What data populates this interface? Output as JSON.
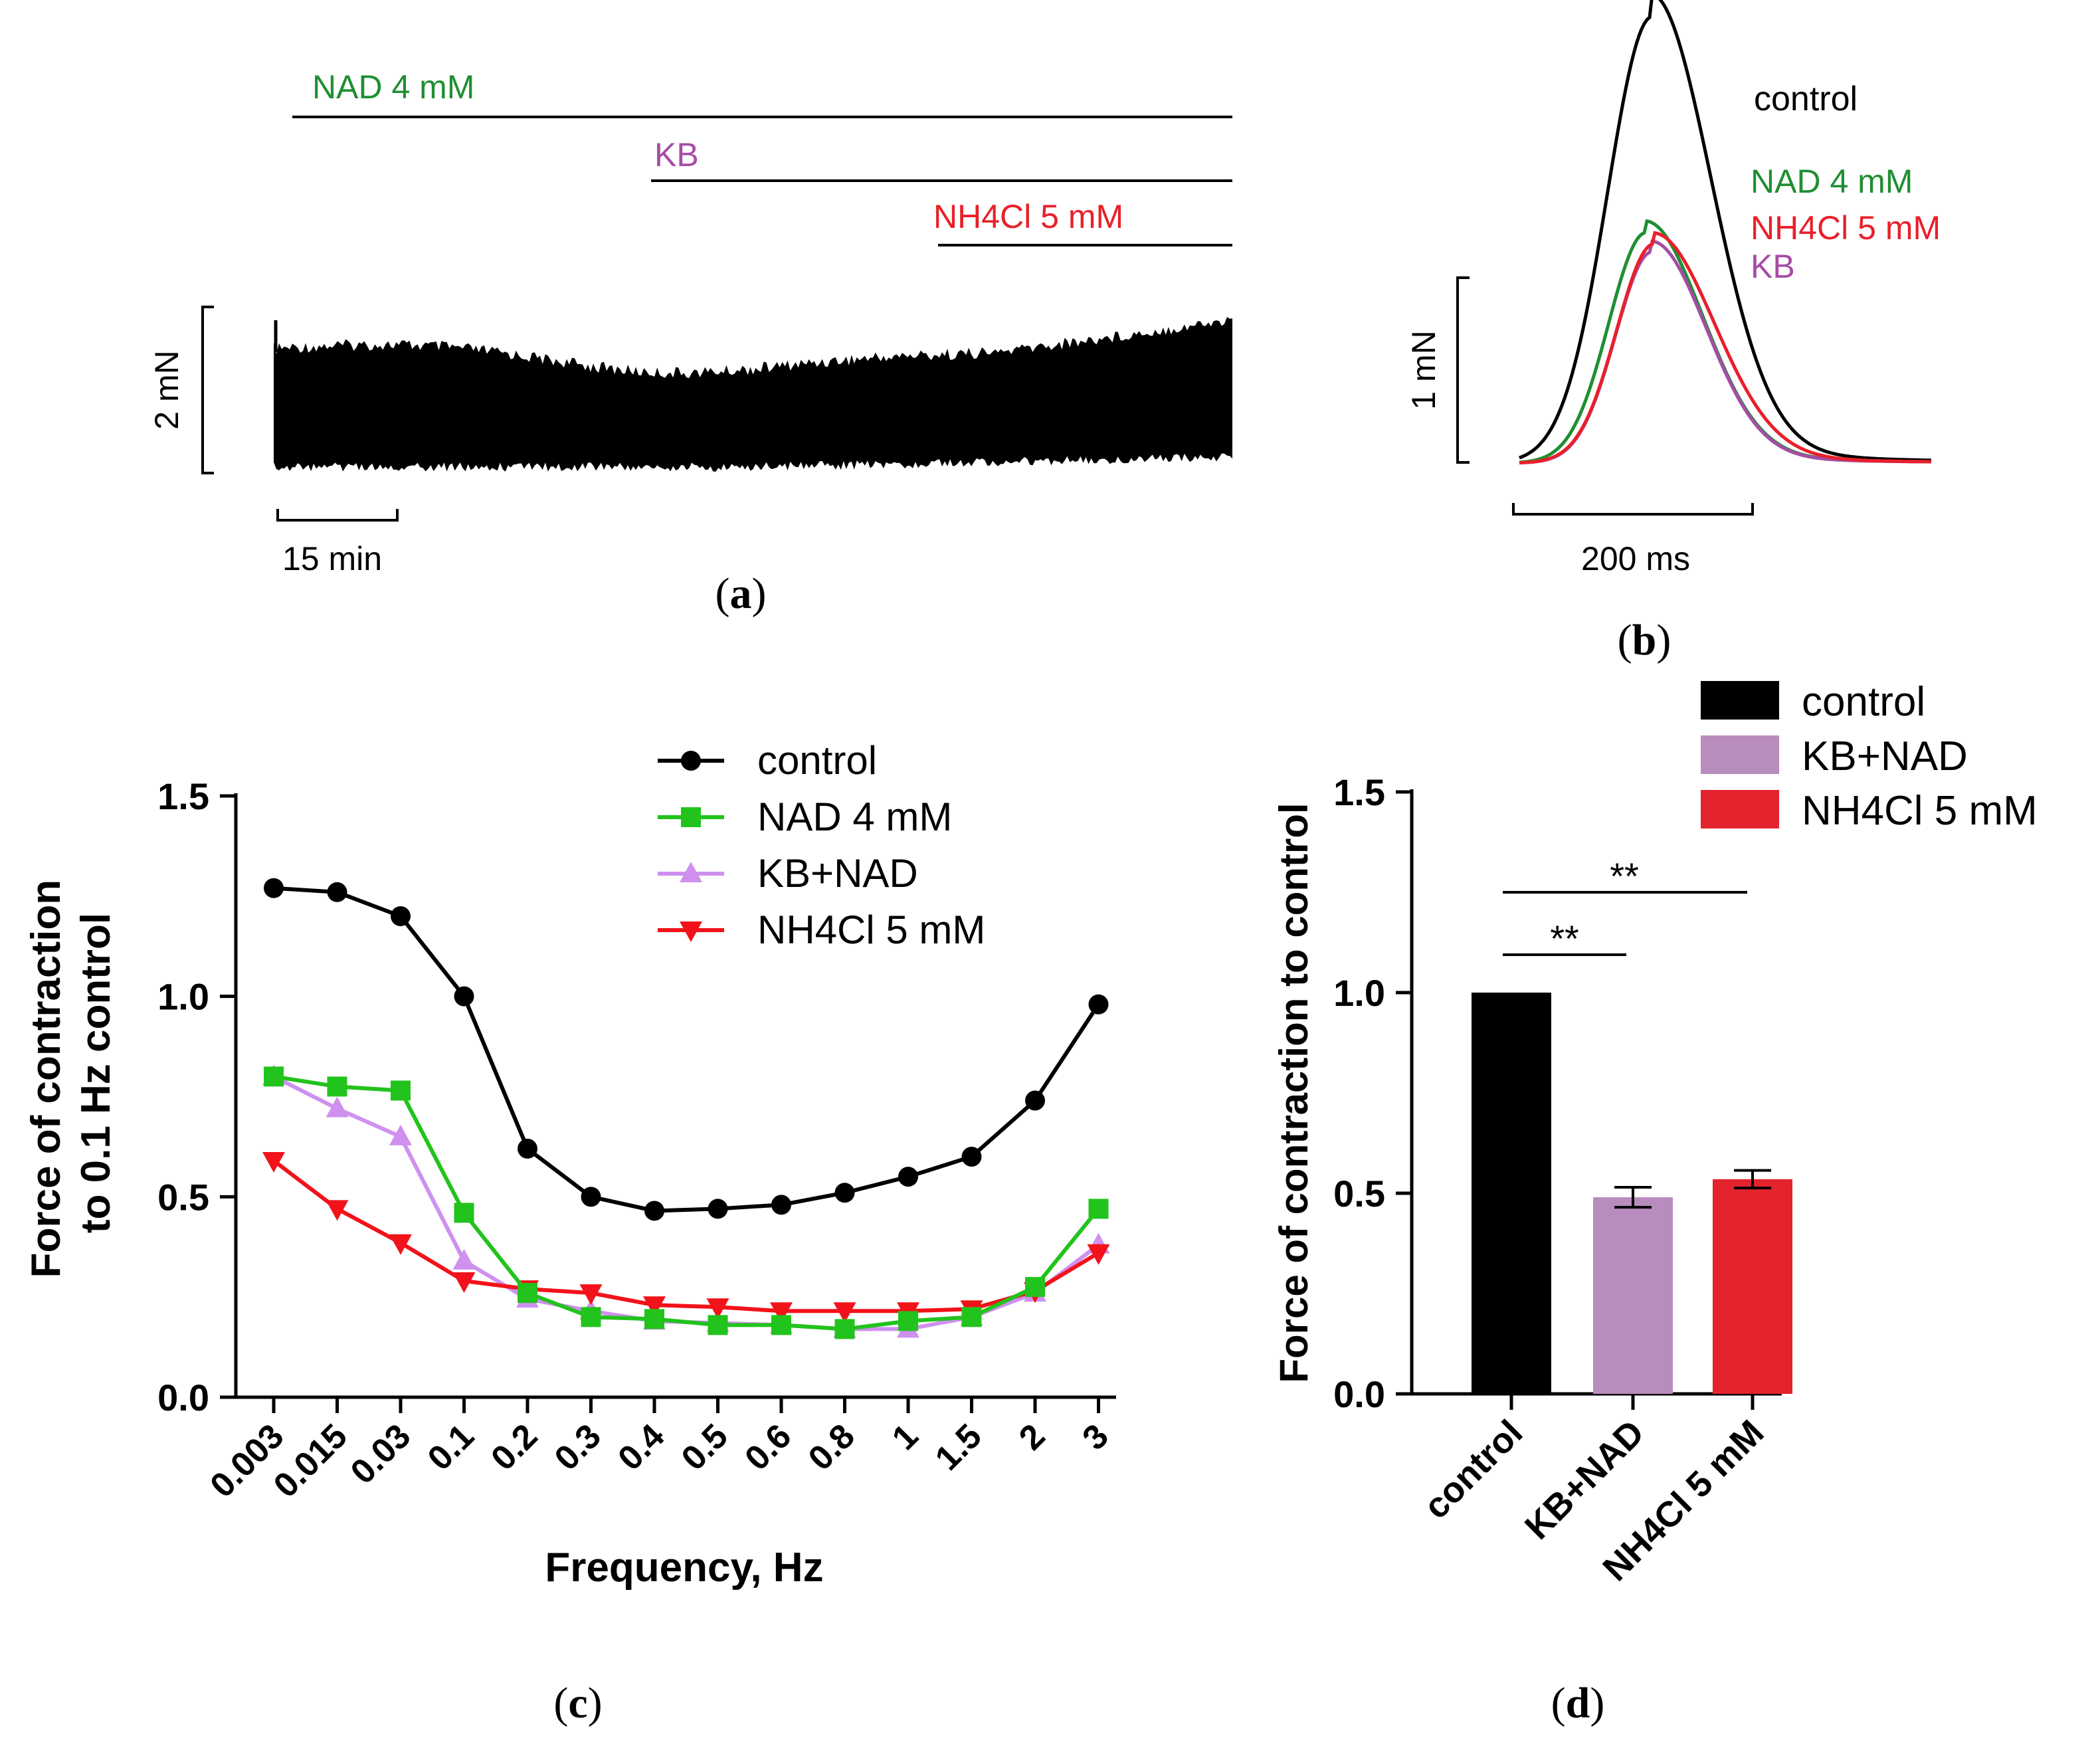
{
  "colors": {
    "control": "#000000",
    "nad": "#1f8f32",
    "kb": "#a64ca6",
    "nh4cl": "#e8202a",
    "c_nad": "#22c31c",
    "c_kb": "#cf90ef",
    "c_nh4cl": "#f2121a",
    "d_kb": "#b98cbe",
    "d_nh4cl": "#e3232d"
  },
  "panel_a": {
    "label_open": "(",
    "letter": "a",
    "label_close": ")",
    "treatments": [
      "NAD 4 mM",
      "KB",
      "NH4Cl 5 mM"
    ],
    "scale_force": "2 mN",
    "scale_time": "15 min"
  },
  "panel_b": {
    "label_open": "(",
    "letter": "b",
    "label_close": ")",
    "legend": [
      "control",
      "NAD 4 mM",
      "NH4Cl 5 mM",
      "KB"
    ],
    "scale_force": "1 mN",
    "scale_time": "200 ms"
  },
  "panel_c": {
    "label_open": "(",
    "letter": "c",
    "label_close": ")",
    "ylabel_line1": "Force of contraction",
    "ylabel_line2": "to 0.1 Hz control"
  },
  "panel_d": {
    "label_open": "(",
    "letter": "d",
    "label_close": ")",
    "significance": [
      "**",
      "**"
    ]
  },
  "chart_data": [
    {
      "type": "line",
      "panel": "c",
      "title": "",
      "xlabel": "Frequency, Hz",
      "ylabel": "Force of contraction to 0.1 Hz control",
      "categories": [
        "0.003",
        "0.015",
        "0.03",
        "0.1",
        "0.2",
        "0.3",
        "0.4",
        "0.5",
        "0.6",
        "0.8",
        "1",
        "1.5",
        "2",
        "3"
      ],
      "ylim": [
        0,
        1.5
      ],
      "yticks": [
        "0.0",
        "0.5",
        "1.0",
        "1.5"
      ],
      "legend_position": "top-right",
      "series": [
        {
          "name": "control",
          "marker": "circle",
          "values": [
            1.27,
            1.26,
            1.2,
            1.0,
            0.62,
            0.5,
            0.465,
            0.47,
            0.48,
            0.51,
            0.55,
            0.6,
            0.74,
            0.98
          ]
        },
        {
          "name": "NAD 4 mM",
          "marker": "square",
          "values": [
            0.8,
            0.775,
            0.765,
            0.46,
            0.26,
            0.2,
            0.195,
            0.18,
            0.18,
            0.17,
            0.19,
            0.2,
            0.275,
            0.47
          ]
        },
        {
          "name": "KB+NAD",
          "marker": "triangle-up",
          "values": [
            0.8,
            0.72,
            0.65,
            0.34,
            0.245,
            0.215,
            0.19,
            0.185,
            0.18,
            0.17,
            0.17,
            0.2,
            0.26,
            0.38
          ]
        },
        {
          "name": "NH4Cl 5 mM",
          "marker": "triangle-down",
          "values": [
            0.59,
            0.47,
            0.385,
            0.29,
            0.27,
            0.26,
            0.23,
            0.225,
            0.215,
            0.215,
            0.215,
            0.22,
            0.265,
            0.36
          ]
        }
      ]
    },
    {
      "type": "bar",
      "panel": "d",
      "title": "",
      "xlabel": "",
      "ylabel": "Force of contraction to control",
      "categories": [
        "control",
        "KB+NAD",
        "NH4Cl 5 mM"
      ],
      "values": [
        1.0,
        0.49,
        0.535
      ],
      "errors": [
        0,
        0.025,
        0.022
      ],
      "ylim": [
        0,
        1.5
      ],
      "yticks": [
        "0.0",
        "0.5",
        "1.0",
        "1.5"
      ],
      "legend": [
        "control",
        "KB+NAD",
        "NH4Cl 5 mM"
      ],
      "legend_position": "top-right"
    }
  ]
}
